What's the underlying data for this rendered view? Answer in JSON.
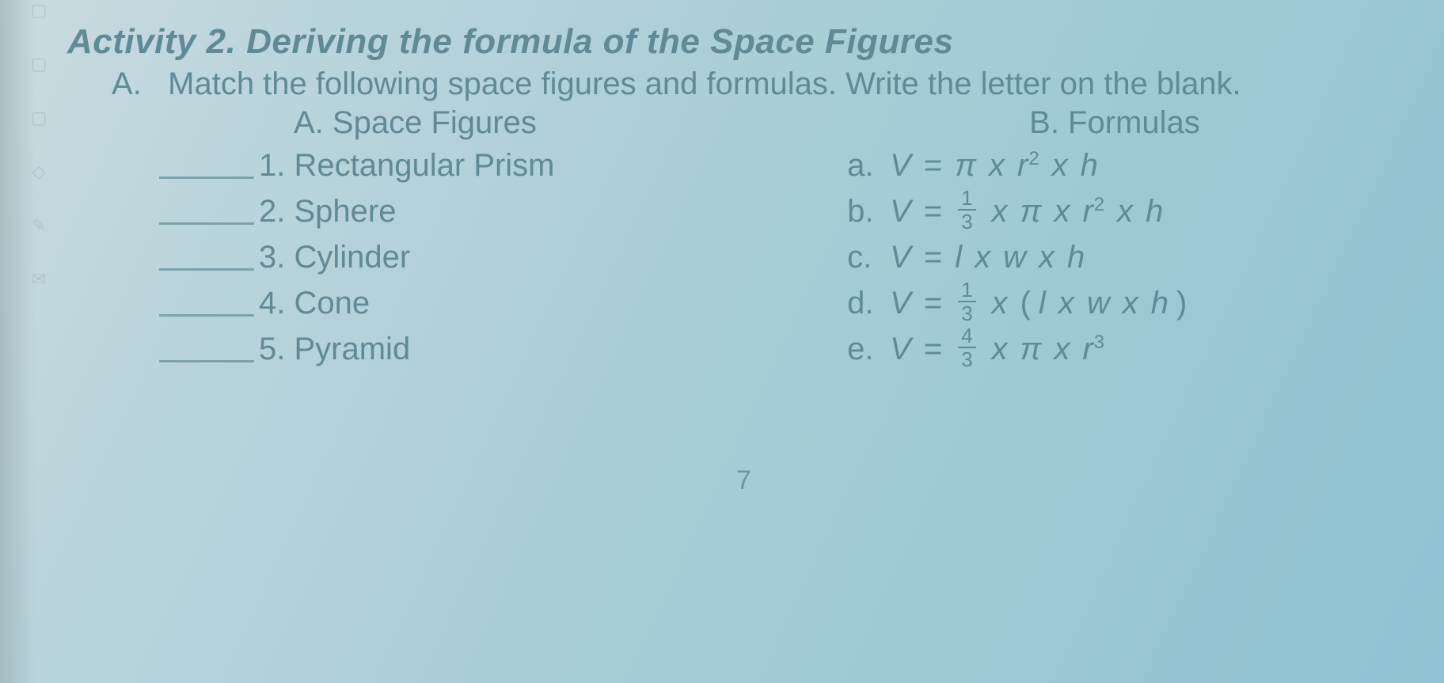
{
  "activity": {
    "title": "Activity 2. Deriving the formula of the Space Figures",
    "instruction_label": "A.",
    "instruction_text": "Match the following space figures and formulas. Write the letter on the blank."
  },
  "columns": {
    "left_heading": "A. Space Figures",
    "right_heading": "B. Formulas"
  },
  "figures": [
    {
      "num": "1.",
      "name": "Rectangular Prism"
    },
    {
      "num": "2.",
      "name": "Sphere"
    },
    {
      "num": "3.",
      "name": "Cylinder"
    },
    {
      "num": "4.",
      "name": "Cone"
    },
    {
      "num": "5.",
      "name": "Pyramid"
    }
  ],
  "formulas": {
    "a": {
      "label": "a.",
      "lhs": "V",
      "eq": "=",
      "pi": "π",
      "x": "x",
      "r": "r",
      "exp2": "2",
      "h": "h"
    },
    "b": {
      "label": "b.",
      "lhs": "V",
      "eq": "=",
      "frac_num": "1",
      "frac_den": "3",
      "x": "x",
      "pi": "π",
      "r": "r",
      "exp2": "2",
      "h": "h"
    },
    "c": {
      "label": "c.",
      "lhs": "V",
      "eq": "=",
      "l": "l",
      "x": "x",
      "w": "w",
      "h": "h"
    },
    "d": {
      "label": "d.",
      "lhs": "V",
      "eq": "=",
      "frac_num": "1",
      "frac_den": "3",
      "x": "x",
      "open": "(",
      "l": "l",
      "w": "w",
      "h": "h",
      "close": ")"
    },
    "e": {
      "label": "e.",
      "lhs": "V",
      "eq": "=",
      "frac_num": "4",
      "frac_den": "3",
      "x": "x",
      "pi": "π",
      "r": "r",
      "exp3": "3"
    }
  },
  "page_number": "7",
  "colors": {
    "text": "#5f8a96",
    "underline": "#7da2ac",
    "bg_start": "#c9dbe0",
    "bg_end": "#8fc3d1"
  },
  "margin_glyphs": [
    "▢",
    "▢",
    "▢",
    "◇",
    "✎",
    "✉"
  ]
}
